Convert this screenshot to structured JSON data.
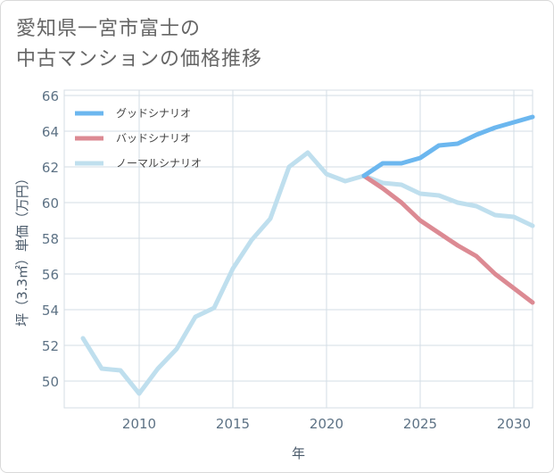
{
  "title_lines": [
    "愛知県一宮市富士の",
    "中古マンションの価格推移"
  ],
  "chart_data": {
    "type": "line",
    "xlabel": "年",
    "ylabel": "坪（3.3㎡）単価（万円）",
    "xlim": [
      2006,
      2031
    ],
    "ylim": [
      48.5,
      66.3
    ],
    "xticks": [
      2010,
      2015,
      2020,
      2025,
      2030
    ],
    "yticks": [
      50,
      52,
      54,
      56,
      58,
      60,
      62,
      64,
      66
    ],
    "grid": true,
    "legend_position": "top-left",
    "series": [
      {
        "name": "グッドシナリオ",
        "color": "#6cb7ef",
        "x": [
          2022,
          2023,
          2024,
          2025,
          2026,
          2027,
          2028,
          2029,
          2030,
          2031
        ],
        "y": [
          61.5,
          62.2,
          62.2,
          62.5,
          63.2,
          63.3,
          63.8,
          64.2,
          64.5,
          64.8
        ]
      },
      {
        "name": "バッドシナリオ",
        "color": "#dc8a93",
        "x": [
          2022,
          2023,
          2024,
          2025,
          2026,
          2027,
          2028,
          2029,
          2030,
          2031
        ],
        "y": [
          61.5,
          60.8,
          60.0,
          59.0,
          58.3,
          57.6,
          57.0,
          56.0,
          55.2,
          54.4
        ]
      },
      {
        "name": "ノーマルシナリオ",
        "color": "#bfdfee",
        "x": [
          2007,
          2008,
          2009,
          2010,
          2011,
          2012,
          2013,
          2014,
          2015,
          2016,
          2017,
          2018,
          2019,
          2020,
          2021,
          2022,
          2023,
          2024,
          2025,
          2026,
          2027,
          2028,
          2029,
          2030,
          2031
        ],
        "y": [
          52.4,
          50.7,
          50.6,
          49.3,
          50.7,
          51.8,
          53.6,
          54.1,
          56.3,
          57.9,
          59.1,
          62.0,
          62.8,
          61.6,
          61.2,
          61.5,
          61.1,
          61.0,
          60.5,
          60.4,
          60.0,
          59.8,
          59.3,
          59.2,
          58.7
        ]
      }
    ]
  }
}
